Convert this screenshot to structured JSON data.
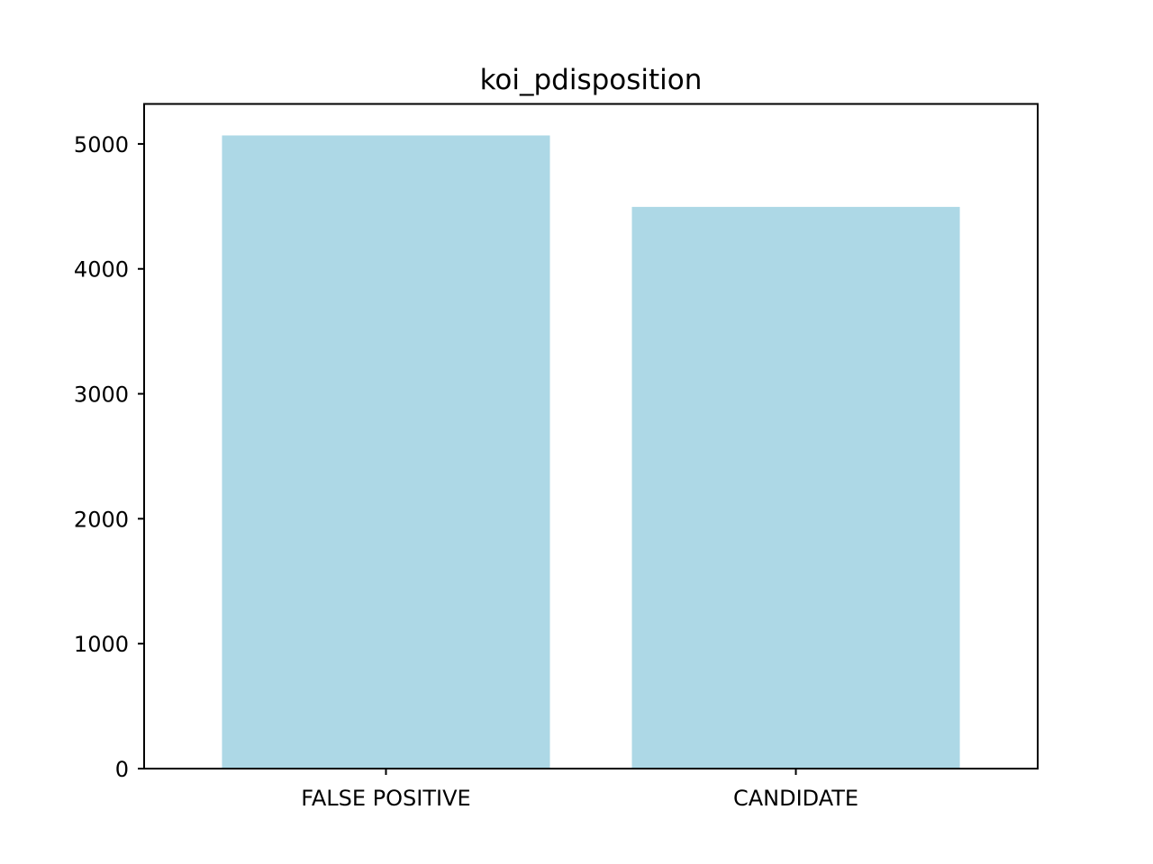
{
  "chart_data": {
    "type": "bar",
    "title": "koi_pdisposition",
    "xlabel": "",
    "ylabel": "",
    "categories": [
      "FALSE POSITIVE",
      "CANDIDATE"
    ],
    "values": [
      5068,
      4496
    ],
    "ylim": [
      0,
      5320
    ],
    "yticks": [
      0,
      1000,
      2000,
      3000,
      4000,
      5000
    ],
    "bar_color": "#add8e6",
    "grid": false,
    "legend": "none"
  }
}
